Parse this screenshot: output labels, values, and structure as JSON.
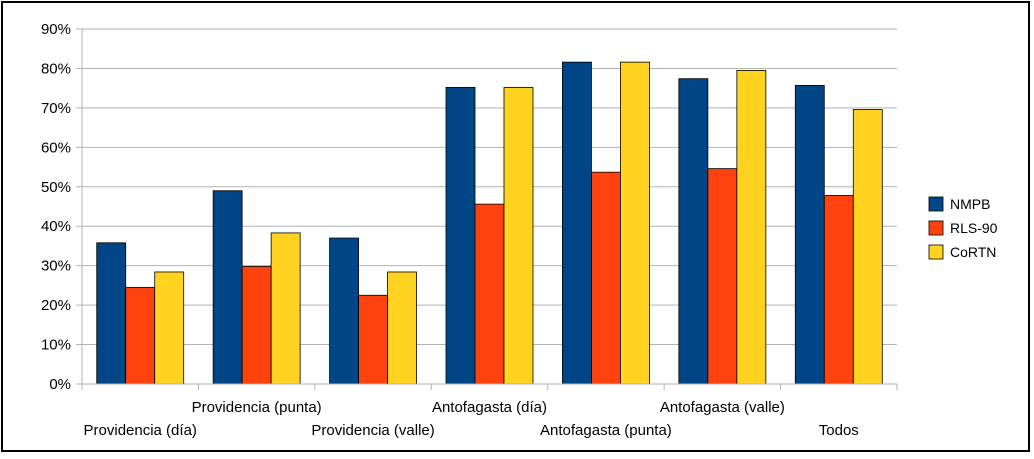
{
  "chart_data": {
    "type": "bar",
    "categories": [
      "Providencia (día)",
      "Providencia (punta)",
      "Providencia (valle)",
      "Antofagasta (día)",
      "Antofagasta (punta)",
      "Antofagasta (valle)",
      "Todos"
    ],
    "series": [
      {
        "name": "NMPB",
        "color": "#004586",
        "values": [
          35.8,
          49.0,
          37.0,
          75.2,
          81.6,
          77.4,
          75.7
        ]
      },
      {
        "name": "RLS-90",
        "color": "#ff420e",
        "values": [
          24.5,
          29.8,
          22.5,
          45.6,
          53.7,
          54.6,
          47.8
        ]
      },
      {
        "name": "CoRTN",
        "color": "#ffd320",
        "values": [
          28.4,
          38.3,
          28.4,
          75.2,
          81.6,
          79.5,
          69.6
        ]
      }
    ],
    "y_ticks": [
      "0%",
      "10%",
      "20%",
      "30%",
      "40%",
      "50%",
      "60%",
      "70%",
      "80%",
      "90%"
    ],
    "ylim": [
      0,
      90
    ],
    "y_unit": "%",
    "grid": "horizontal",
    "legend_position": "right",
    "title": "",
    "xlabel": "",
    "ylabel": ""
  }
}
